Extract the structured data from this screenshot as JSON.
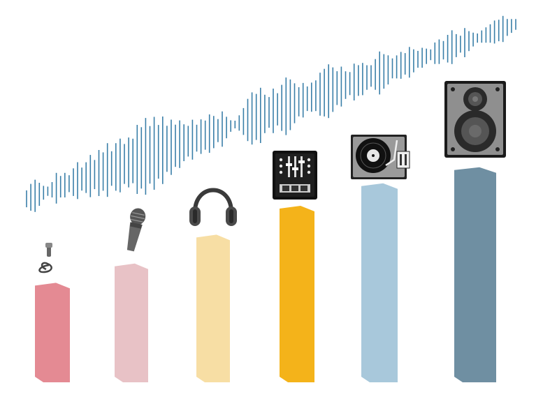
{
  "chart_data": {
    "type": "bar",
    "categories": [
      "lavalier-mic",
      "microphone",
      "headphones",
      "dj-mixer",
      "turntable",
      "speaker"
    ],
    "values": [
      31,
      37,
      46,
      55,
      62,
      67
    ],
    "colors": [
      "#e48a93",
      "#e8c2c6",
      "#f7dea4",
      "#f4b31a",
      "#a8c8db",
      "#6f8fa2"
    ],
    "icons": [
      "lavalier-mic-icon",
      "handheld-mic-icon",
      "headphones-icon",
      "dj-mixer-icon",
      "turntable-icon",
      "speaker-icon"
    ]
  },
  "waveform": {
    "color": "#3a7fa8",
    "amplitudes": [
      22,
      35,
      42,
      30,
      18,
      12,
      20,
      40,
      28,
      32,
      22,
      36,
      48,
      30,
      40,
      55,
      38,
      60,
      50,
      70,
      45,
      62,
      70,
      52,
      65,
      58,
      90,
      80,
      100,
      75,
      95,
      70,
      88,
      60,
      72,
      55,
      62,
      48,
      40,
      52,
      35,
      45,
      38,
      50,
      42,
      30,
      46,
      28,
      15,
      10,
      20,
      35,
      55,
      68,
      60,
      72,
      50,
      40,
      58,
      42,
      60,
      75,
      66,
      52,
      38,
      45,
      32,
      38,
      40,
      56,
      62,
      70,
      58,
      44,
      52,
      36,
      30,
      48,
      40,
      42,
      32,
      28,
      40,
      56,
      45,
      38,
      26,
      30,
      35,
      28,
      40,
      30,
      22,
      26,
      20,
      14,
      28,
      32,
      24,
      36,
      44,
      30,
      22,
      38,
      26,
      18,
      12,
      16,
      20,
      24,
      30,
      28,
      34,
      22,
      18,
      14
    ]
  }
}
